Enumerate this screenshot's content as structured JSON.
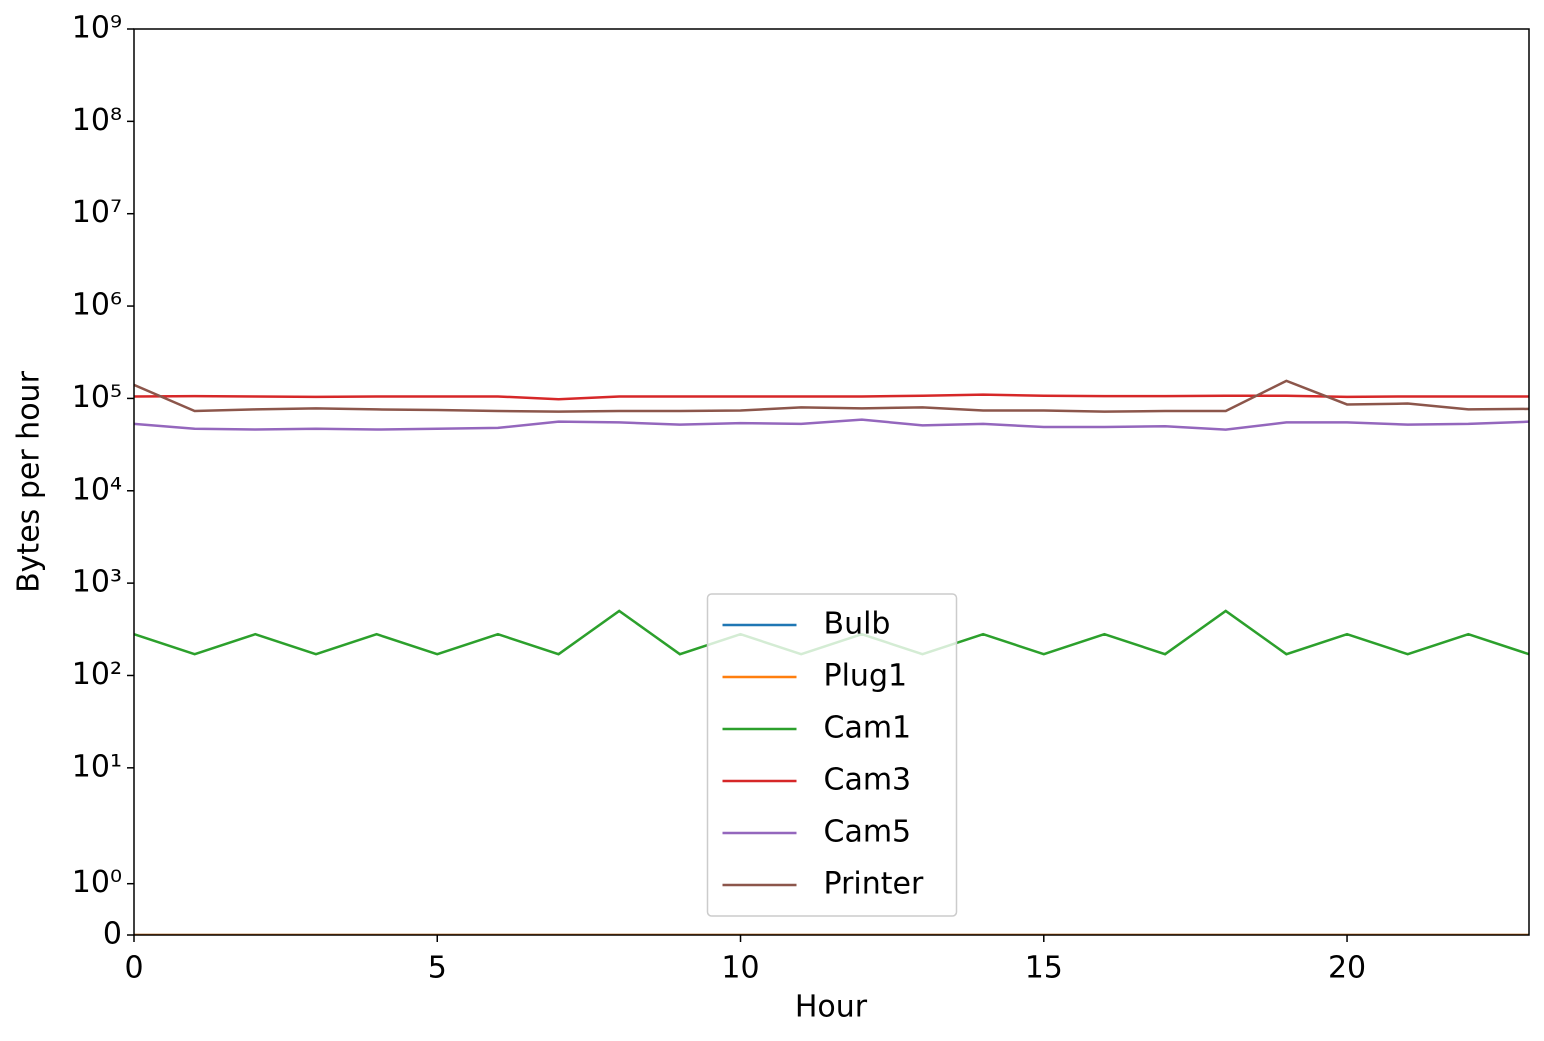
{
  "chart_data": {
    "type": "line",
    "x_label": "Hour",
    "y_label": "Bytes per hour",
    "x": [
      0,
      1,
      2,
      3,
      4,
      5,
      6,
      7,
      8,
      9,
      10,
      11,
      12,
      13,
      14,
      15,
      16,
      17,
      18,
      19,
      20,
      21,
      22,
      23
    ],
    "series": [
      {
        "name": "Bulb",
        "color": "#1f77b4",
        "values": [
          0,
          0,
          0,
          0,
          0,
          0,
          0,
          0,
          0,
          0,
          0,
          0,
          0,
          0,
          0,
          0,
          0,
          0,
          0,
          0,
          0,
          0,
          0,
          0
        ]
      },
      {
        "name": "Plug1",
        "color": "#ff7f0e",
        "values": [
          0,
          0,
          0,
          0,
          0,
          0,
          0,
          0,
          0,
          0,
          0,
          0,
          0,
          0,
          0,
          0,
          0,
          0,
          0,
          0,
          0,
          0,
          0,
          0
        ]
      },
      {
        "name": "Cam1",
        "color": "#2ca02c",
        "values": [
          280,
          170,
          280,
          170,
          280,
          170,
          280,
          170,
          500,
          170,
          280,
          170,
          280,
          170,
          280,
          170,
          280,
          170,
          500,
          170,
          280,
          170,
          280,
          170
        ]
      },
      {
        "name": "Cam3",
        "color": "#d62728",
        "values": [
          105000,
          106000,
          105000,
          104000,
          105000,
          105000,
          105000,
          98000,
          105000,
          105000,
          105000,
          105000,
          105000,
          107000,
          110000,
          107000,
          106000,
          106000,
          107000,
          107000,
          104000,
          105000,
          105000,
          105000
        ]
      },
      {
        "name": "Cam5",
        "color": "#9467bd",
        "values": [
          53000,
          47000,
          46000,
          47000,
          46000,
          47000,
          48000,
          56000,
          55000,
          52000,
          54000,
          53000,
          59000,
          51000,
          53000,
          49000,
          49000,
          50000,
          46000,
          55000,
          55000,
          52000,
          53000,
          56000
        ]
      },
      {
        "name": "Printer",
        "color": "#8c564b",
        "values": [
          140000,
          73000,
          76000,
          78000,
          76000,
          75000,
          73000,
          72000,
          73000,
          73000,
          74000,
          80000,
          78000,
          80000,
          74000,
          74000,
          72000,
          73000,
          73000,
          155000,
          86000,
          88000,
          76000,
          77000
        ]
      }
    ],
    "xlim": [
      0,
      23
    ],
    "xticks": [
      0,
      5,
      10,
      15,
      20
    ],
    "ylim": [
      0,
      1000000000
    ],
    "yscale": "symlog",
    "linthresh": 2,
    "linscale": 1,
    "yticks": [
      0,
      {
        "value": 1,
        "label": "10⁰"
      },
      {
        "value": 10,
        "label": "10¹"
      },
      {
        "value": 100,
        "label": "10²"
      },
      {
        "value": 1000,
        "label": "10³"
      },
      {
        "value": 10000,
        "label": "10⁴"
      },
      {
        "value": 100000,
        "label": "10⁵"
      },
      {
        "value": 1000000,
        "label": "10⁶"
      },
      {
        "value": 10000000,
        "label": "10⁷"
      },
      {
        "value": 100000000,
        "label": "10⁸"
      },
      {
        "value": 1000000000,
        "label": "10⁹"
      }
    ],
    "legend": "lower center"
  }
}
